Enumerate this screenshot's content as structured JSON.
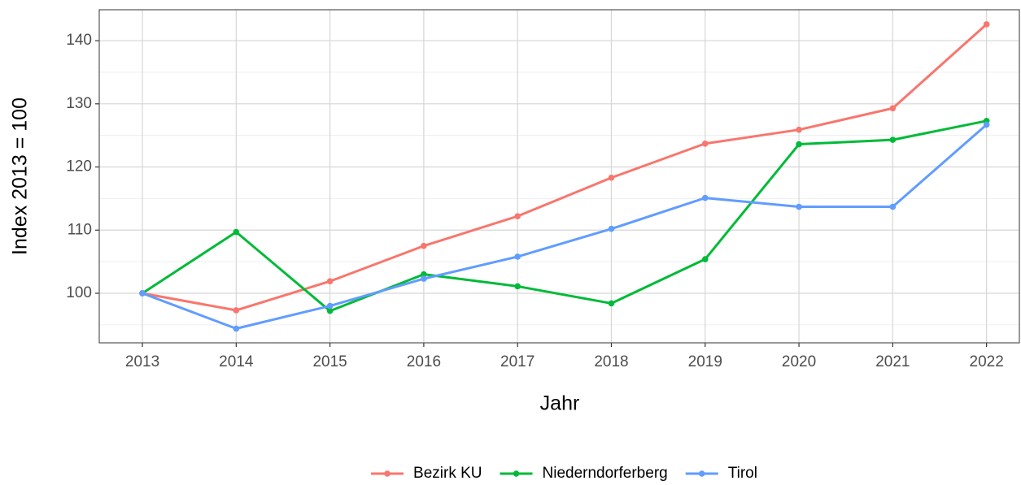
{
  "chart_data": {
    "type": "line",
    "x_label": "Jahr",
    "y_label": "Index  2013  = 100",
    "x": [
      2013,
      2014,
      2015,
      2016,
      2017,
      2018,
      2019,
      2020,
      2021,
      2022
    ],
    "series": [
      {
        "name": "Bezirk KU",
        "color": "#F8766D",
        "values": [
          100,
          97.3,
          101.9,
          107.5,
          112.2,
          118.3,
          123.7,
          125.9,
          129.3,
          142.6
        ]
      },
      {
        "name": "Niederndorferberg",
        "color": "#00BA38",
        "values": [
          100,
          109.7,
          97.2,
          103.0,
          101.1,
          98.4,
          105.4,
          123.6,
          124.3,
          127.3
        ]
      },
      {
        "name": "Tirol",
        "color": "#619CFF",
        "values": [
          100,
          94.4,
          98.0,
          102.3,
          105.8,
          110.2,
          115.1,
          113.7,
          113.7,
          126.7
        ]
      }
    ],
    "xlim": [
      2012.54,
      2022.35
    ],
    "xticks": [
      2013,
      2014,
      2015,
      2016,
      2017,
      2018,
      2019,
      2020,
      2021,
      2022
    ],
    "ylim": [
      92.15,
      144.9
    ],
    "yticks": [
      100,
      110,
      120,
      130,
      140
    ],
    "y_minor_ticks": [
      95,
      105,
      115,
      125,
      135
    ],
    "grid": true,
    "legend": "bottom"
  }
}
